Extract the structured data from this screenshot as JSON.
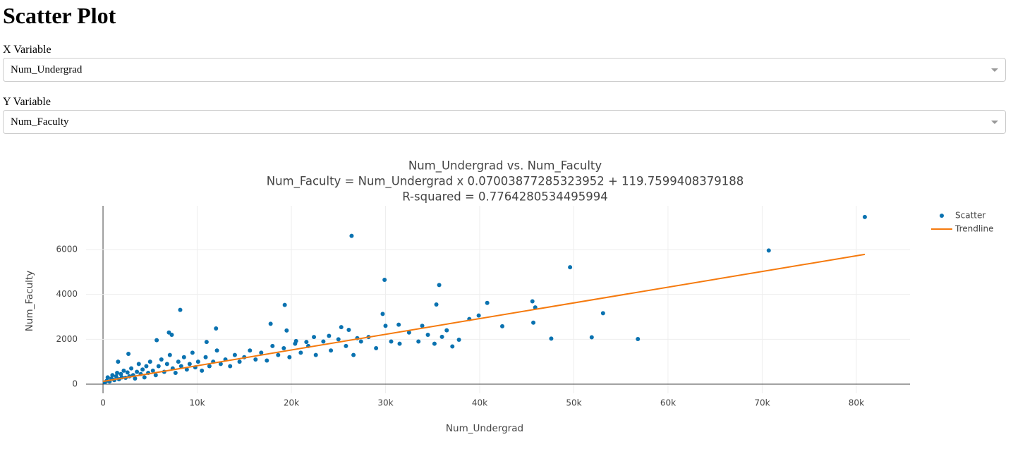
{
  "header": {
    "title": "Scatter Plot"
  },
  "controls": [
    {
      "label": "X Variable",
      "value": "Num_Undergrad"
    },
    {
      "label": "Y Variable",
      "value": "Num_Faculty"
    }
  ],
  "chart_data": {
    "type": "scatter",
    "title": "Num_Undergrad vs. Num_Faculty",
    "subtitle": "Num_Faculty = Num_Undergrad x 0.07003877285323952 + 119.7599408379188",
    "annotation": "R-squared = 0.7764280534495994",
    "x_label": "Num_Undergrad",
    "y_label": "Num_Faculty",
    "xlim": [
      -1800,
      85700
    ],
    "ylim": [
      -410,
      7950
    ],
    "xticks": [
      0,
      {
        "value": 10000,
        "label": "10k"
      },
      {
        "value": 20000,
        "label": "20k"
      },
      {
        "value": 30000,
        "label": "30k"
      },
      {
        "value": 40000,
        "label": "40k"
      },
      {
        "value": 50000,
        "label": "50k"
      },
      {
        "value": 60000,
        "label": "60k"
      },
      {
        "value": 70000,
        "label": "70k"
      },
      {
        "value": 80000,
        "label": "80k"
      }
    ],
    "yticks": [
      0,
      2000,
      4000,
      6000
    ],
    "grid": true,
    "legend": "top-right",
    "series": [
      {
        "name": "Scatter",
        "color": "#0A72B0",
        "mode": "markers",
        "x": [
          80900,
          70700,
          49600,
          26400,
          29900,
          35700,
          40800,
          45600,
          45900,
          53100,
          35400,
          29700,
          19300,
          8200,
          39900,
          38900,
          42400,
          45700,
          47600,
          51900,
          56800,
          37800,
          37100,
          36000,
          33900,
          31400,
          30000,
          27000,
          26100,
          25300,
          24000,
          22400,
          21600,
          20500,
          19500,
          17800,
          12000,
          11000,
          7000,
          7300,
          5700,
          2700,
          1600,
          200,
          400,
          500,
          700,
          900,
          1000,
          1200,
          1400,
          1500,
          1700,
          1900,
          2000,
          2200,
          2400,
          2600,
          2800,
          3000,
          3200,
          3400,
          3600,
          3800,
          4000,
          4200,
          4400,
          4600,
          4800,
          5000,
          5300,
          5600,
          5900,
          6200,
          6500,
          6800,
          7100,
          7400,
          7700,
          8000,
          8300,
          8600,
          8900,
          9200,
          9500,
          9800,
          10100,
          10500,
          10900,
          11300,
          11700,
          12100,
          12500,
          13000,
          13500,
          14000,
          14500,
          15000,
          15600,
          16200,
          16800,
          17400,
          18000,
          18600,
          19200,
          19800,
          20400,
          21000,
          21800,
          22600,
          23400,
          24200,
          25000,
          25800,
          26600,
          27400,
          28200,
          29000,
          30600,
          31500,
          32500,
          33500,
          34500,
          35200,
          36500
        ],
        "values": [
          7450,
          5960,
          5210,
          6610,
          4650,
          4420,
          3620,
          3690,
          3420,
          3160,
          3550,
          3130,
          3530,
          3310,
          3060,
          2900,
          2580,
          2740,
          2030,
          2090,
          2010,
          1980,
          1680,
          2110,
          2600,
          2650,
          2600,
          2050,
          2420,
          2540,
          2150,
          2100,
          1880,
          1920,
          2390,
          2690,
          2480,
          1880,
          2300,
          2200,
          1960,
          1350,
          1000,
          80,
          150,
          300,
          120,
          250,
          400,
          180,
          350,
          500,
          220,
          450,
          300,
          600,
          280,
          520,
          350,
          700,
          400,
          250,
          550,
          900,
          450,
          650,
          300,
          800,
          500,
          1000,
          600,
          400,
          800,
          1100,
          550,
          900,
          1300,
          700,
          500,
          1000,
          800,
          1200,
          650,
          900,
          1400,
          750,
          1000,
          600,
          1200,
          800,
          1000,
          1500,
          900,
          1100,
          800,
          1300,
          1000,
          1200,
          1500,
          1100,
          1400,
          1050,
          1700,
          1300,
          1600,
          1200,
          1800,
          1400,
          1700,
          1300,
          1900,
          1500,
          2000,
          1700,
          1300,
          1900,
          2100,
          1600,
          1900,
          1800,
          2300,
          1900,
          2200,
          1800,
          2400
        ]
      },
      {
        "name": "Trendline",
        "color": "#F57A0E",
        "mode": "lines",
        "x": [
          0,
          80900
        ],
        "values": [
          119.76,
          5785.9
        ]
      }
    ]
  }
}
